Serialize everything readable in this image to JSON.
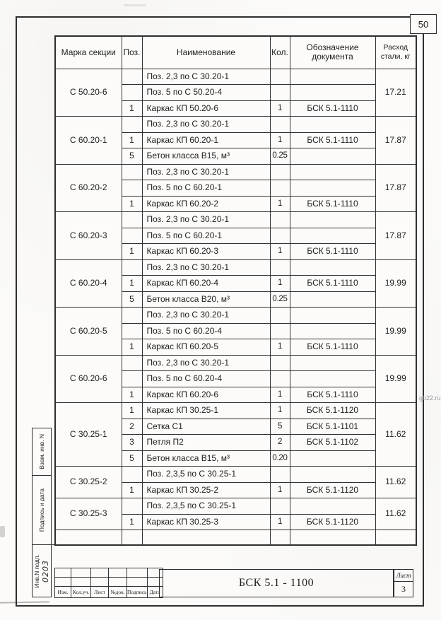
{
  "page": {
    "sheet_corner_number": "50",
    "watermark": "gb22.ru"
  },
  "table": {
    "headers": {
      "mark": "Марка секции",
      "pos": "Поз.",
      "name": "Наименование",
      "qty": "Кол.",
      "doc": "Обозначение документа",
      "steel": "Расход стали, кг"
    },
    "groups": [
      {
        "mark": "С 50.20-6",
        "steel": "17.21",
        "rows": [
          {
            "pos": "",
            "name": "Поз. 2,3 по С 30.20-1",
            "qty": "",
            "doc": ""
          },
          {
            "pos": "",
            "name": "Поз. 5 по С 50.20-4",
            "qty": "",
            "doc": ""
          },
          {
            "pos": "1",
            "name": "Каркас КП 50.20-6",
            "qty": "1",
            "doc": "БСК 5.1-1110"
          }
        ]
      },
      {
        "mark": "С 60.20-1",
        "steel": "17.87",
        "rows": [
          {
            "pos": "",
            "name": "Поз. 2,3 по С 30.20-1",
            "qty": "",
            "doc": ""
          },
          {
            "pos": "1",
            "name": "Каркас КП 60.20-1",
            "qty": "1",
            "doc": "БСК 5.1-1110"
          },
          {
            "pos": "5",
            "name": "Бетон класса В15, м³",
            "qty": "0.25",
            "doc": ""
          }
        ]
      },
      {
        "mark": "С 60.20-2",
        "steel": "17.87",
        "rows": [
          {
            "pos": "",
            "name": "Поз. 2,3 по С 30.20-1",
            "qty": "",
            "doc": ""
          },
          {
            "pos": "",
            "name": "Поз. 5 по С 60.20-1",
            "qty": "",
            "doc": ""
          },
          {
            "pos": "1",
            "name": "Каркас КП 60.20-2",
            "qty": "1",
            "doc": "БСК 5.1-1110"
          }
        ]
      },
      {
        "mark": "С 60.20-3",
        "steel": "17.87",
        "rows": [
          {
            "pos": "",
            "name": "Поз. 2,3 по С 30.20-1",
            "qty": "",
            "doc": ""
          },
          {
            "pos": "",
            "name": "Поз. 5 по С 60.20-1",
            "qty": "",
            "doc": ""
          },
          {
            "pos": "1",
            "name": "Каркас КП 60.20-3",
            "qty": "1",
            "doc": "БСК 5.1-1110"
          }
        ]
      },
      {
        "mark": "С 60.20-4",
        "steel": "19.99",
        "rows": [
          {
            "pos": "",
            "name": "Поз. 2,3 по С 30.20-1",
            "qty": "",
            "doc": ""
          },
          {
            "pos": "1",
            "name": "Каркас КП 60.20-4",
            "qty": "1",
            "doc": "БСК 5.1-1110"
          },
          {
            "pos": "5",
            "name": "Бетон класса В20, м³",
            "qty": "0.25",
            "doc": ""
          }
        ]
      },
      {
        "mark": "С 60.20-5",
        "steel": "19.99",
        "rows": [
          {
            "pos": "",
            "name": "Поз. 2,3 по С 30.20-1",
            "qty": "",
            "doc": ""
          },
          {
            "pos": "",
            "name": "Поз. 5 по С 60.20-4",
            "qty": "",
            "doc": ""
          },
          {
            "pos": "1",
            "name": "Каркас КП 60.20-5",
            "qty": "1",
            "doc": "БСК 5.1-1110"
          }
        ]
      },
      {
        "mark": "С 60.20-6",
        "steel": "19.99",
        "rows": [
          {
            "pos": "",
            "name": "Поз. 2,3 по С 30.20-1",
            "qty": "",
            "doc": ""
          },
          {
            "pos": "",
            "name": "Поз. 5 по С 60.20-4",
            "qty": "",
            "doc": ""
          },
          {
            "pos": "1",
            "name": "Каркас КП 60.20-6",
            "qty": "1",
            "doc": "БСК 5.1-1110"
          }
        ]
      },
      {
        "mark": "С 30.25-1",
        "steel": "11.62",
        "rows": [
          {
            "pos": "1",
            "name": "Каркас КП 30.25-1",
            "qty": "1",
            "doc": "БСК 5.1-1120"
          },
          {
            "pos": "2",
            "name": "Сетка  С1",
            "qty": "5",
            "doc": "БСК 5.1-1101"
          },
          {
            "pos": "3",
            "name": "Петля П2",
            "qty": "2",
            "doc": "БСК 5.1-1102"
          },
          {
            "pos": "5",
            "name": "Бетон класса В15, м³",
            "qty": "0.20",
            "doc": ""
          }
        ]
      },
      {
        "mark": "С 30.25-2",
        "steel": "11.62",
        "rows": [
          {
            "pos": "",
            "name": "Поз. 2,3,5 по С 30.25-1",
            "qty": "",
            "doc": ""
          },
          {
            "pos": "1",
            "name": "Каркас КП 30.25-2",
            "qty": "1",
            "doc": "БСК 5.1-1120"
          }
        ]
      },
      {
        "mark": "С 30.25-3",
        "steel": "11.62",
        "rows": [
          {
            "pos": "",
            "name": "Поз. 2,3,5 по С 30.25-1",
            "qty": "",
            "doc": ""
          },
          {
            "pos": "1",
            "name": "Каркас КП 30.25-3",
            "qty": "1",
            "doc": "БСК 5.1-1120"
          }
        ]
      }
    ]
  },
  "side_strip": {
    "vzam": "Взам. инв. N",
    "podpis": "Подпись и дата",
    "inv": "Инв.N подл.",
    "handwritten_number": "0203"
  },
  "title_block": {
    "doc_number": "БСК 5.1 - 1100",
    "labels": [
      "Изм.",
      "Кол.уч.",
      "Лист",
      "№док.",
      "Подпись",
      "Дата"
    ],
    "sheet_label": "Лист",
    "sheet_number": "3"
  }
}
